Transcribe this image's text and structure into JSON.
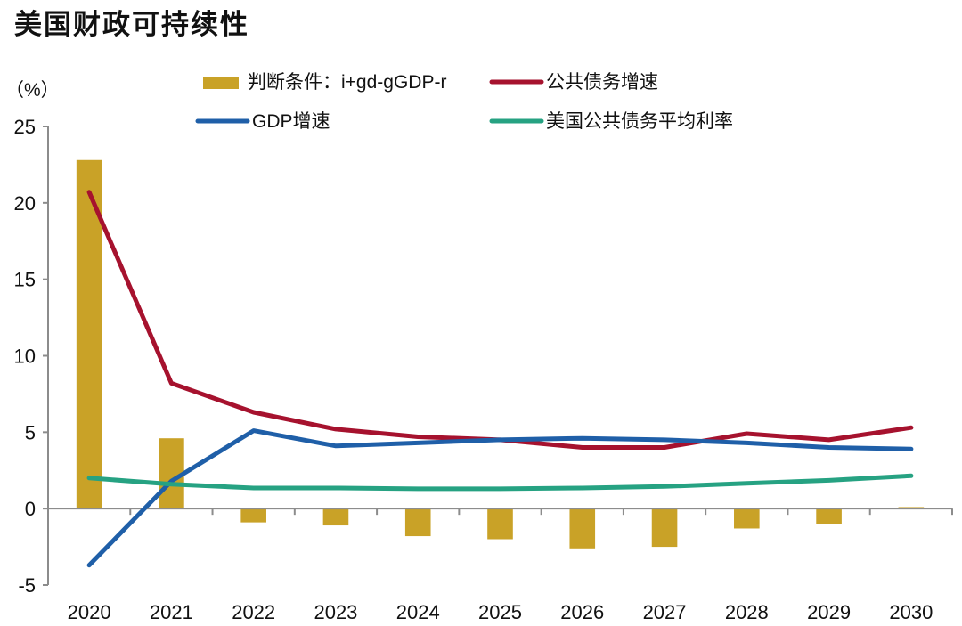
{
  "chart_data": {
    "type": "bar",
    "title": "美国财政可持续性",
    "ylabel": "（%）",
    "xlabel": "",
    "ylim": [
      -5,
      25
    ],
    "yticks": [
      25,
      20,
      15,
      10,
      5,
      0,
      -5
    ],
    "grid": false,
    "legend_position": "top",
    "categories": [
      "2020",
      "2021",
      "2022",
      "2023",
      "2024",
      "2025",
      "2026",
      "2027",
      "2028",
      "2029",
      "2030"
    ],
    "series": [
      {
        "name": "判断条件：i+gd-gGDP-r",
        "kind": "bar",
        "color": "#C9A227",
        "values": [
          22.8,
          4.6,
          -0.9,
          -1.1,
          -1.8,
          -2.0,
          -2.6,
          -2.5,
          -1.3,
          -1.0,
          0.1
        ]
      },
      {
        "name": "公共债务增速",
        "kind": "line",
        "color": "#A6122E",
        "values": [
          20.7,
          8.2,
          6.3,
          5.2,
          4.7,
          4.5,
          4.0,
          4.0,
          4.9,
          4.5,
          5.3
        ]
      },
      {
        "name": "GDP增速",
        "kind": "line",
        "color": "#1F5FA8",
        "values": [
          -3.7,
          1.8,
          5.1,
          4.1,
          4.3,
          4.5,
          4.6,
          4.5,
          4.3,
          4.0,
          3.9
        ]
      },
      {
        "name": "美国公共债务平均利率",
        "kind": "line",
        "color": "#26A282",
        "values": [
          2.0,
          1.6,
          1.35,
          1.35,
          1.3,
          1.3,
          1.35,
          1.45,
          1.65,
          1.85,
          2.15
        ]
      }
    ]
  }
}
